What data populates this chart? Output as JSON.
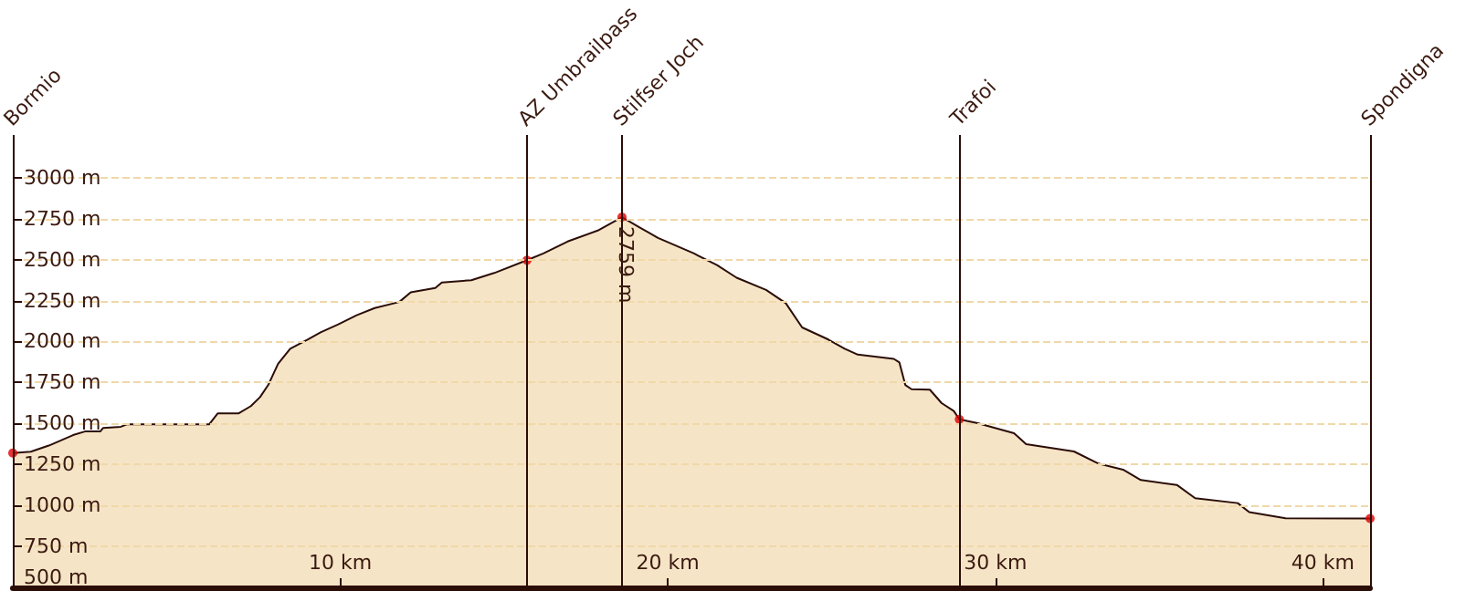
{
  "chart_data": {
    "type": "area",
    "xlim": [
      0,
      41.44
    ],
    "ylim": [
      500,
      3260
    ],
    "xticks": [
      {
        "value": 10,
        "label": "10 km"
      },
      {
        "value": 20,
        "label": "20 km"
      },
      {
        "value": 30,
        "label": "30 km"
      },
      {
        "value": 40,
        "label": "40 km"
      }
    ],
    "yticks": [
      {
        "value": 500,
        "label": "500 m"
      },
      {
        "value": 750,
        "label": "750 m"
      },
      {
        "value": 1000,
        "label": "1000 m"
      },
      {
        "value": 1250,
        "label": "1250 m"
      },
      {
        "value": 1500,
        "label": "1500 m"
      },
      {
        "value": 1750,
        "label": "1750 m"
      },
      {
        "value": 2000,
        "label": "2000 m"
      },
      {
        "value": 2250,
        "label": "2250 m"
      },
      {
        "value": 2500,
        "label": "2500 m"
      },
      {
        "value": 2750,
        "label": "2750 m"
      },
      {
        "value": 3000,
        "label": "3000 m"
      }
    ],
    "grid": "y",
    "marker": "none",
    "series": [
      {
        "color": "#f6e4c6",
        "x": [
          0,
          0.55,
          1.1,
          1.84,
          2.2,
          2.67,
          2.76,
          3.3,
          3.5,
          6.0,
          6.26,
          6.9,
          7.27,
          7.55,
          7.8,
          8.1,
          8.47,
          9.0,
          9.4,
          9.94,
          10.5,
          11.05,
          11.8,
          12.15,
          12.9,
          13.1,
          14.0,
          14.7,
          15.7,
          16.2,
          16.94,
          17.86,
          18.6,
          19.15,
          19.7,
          20.8,
          21.5,
          22.1,
          23.0,
          23.6,
          24.1,
          24.9,
          25.4,
          25.8,
          26.9,
          27.07,
          27.25,
          27.44,
          28.0,
          28.36,
          28.73,
          28.9,
          29.46,
          30.57,
          30.94,
          32.4,
          33.15,
          33.9,
          34.44,
          35.54,
          36.1,
          37.4,
          37.75,
          38.86,
          41.44
        ],
        "values": [
          1320,
          1328,
          1365,
          1429,
          1451,
          1451,
          1473,
          1480,
          1495,
          1495,
          1562,
          1562,
          1606,
          1661,
          1735,
          1864,
          1956,
          2012,
          2056,
          2105,
          2160,
          2204,
          2241,
          2300,
          2326,
          2360,
          2374,
          2418,
          2496,
          2537,
          2610,
          2677,
          2759,
          2695,
          2632,
          2537,
          2466,
          2389,
          2315,
          2234,
          2086,
          2012,
          1956,
          1920,
          1894,
          1872,
          1735,
          1709,
          1706,
          1624,
          1576,
          1525,
          1502,
          1440,
          1373,
          1329,
          1255,
          1218,
          1155,
          1125,
          1044,
          1014,
          959,
          922,
          920
        ]
      },
      {
        "type": "scatter",
        "marker": "circle",
        "color": "#e00000",
        "x": [
          0,
          15.7,
          18.6,
          28.9,
          41.44
        ],
        "values": [
          1320,
          2496,
          2759,
          1525,
          920
        ]
      }
    ],
    "ref_lines": [
      {
        "axis": "x",
        "value": 0,
        "label": "Bormio",
        "color": "#2b0d08"
      },
      {
        "axis": "x",
        "value": 15.7,
        "label": "AZ Umbrailpass",
        "color": "#2b0d08"
      },
      {
        "axis": "x",
        "value": 18.6,
        "label": "Stilfser Joch",
        "color": "#2b0d08"
      },
      {
        "axis": "x",
        "value": 28.9,
        "label": "Trafoi",
        "color": "#2b0d08"
      },
      {
        "axis": "x",
        "value": 41.44,
        "label": "Spondigna",
        "color": "#2b0d08"
      }
    ],
    "annotations": [
      {
        "text": "2759 m",
        "x": 18.6,
        "y": 2759
      }
    ]
  }
}
